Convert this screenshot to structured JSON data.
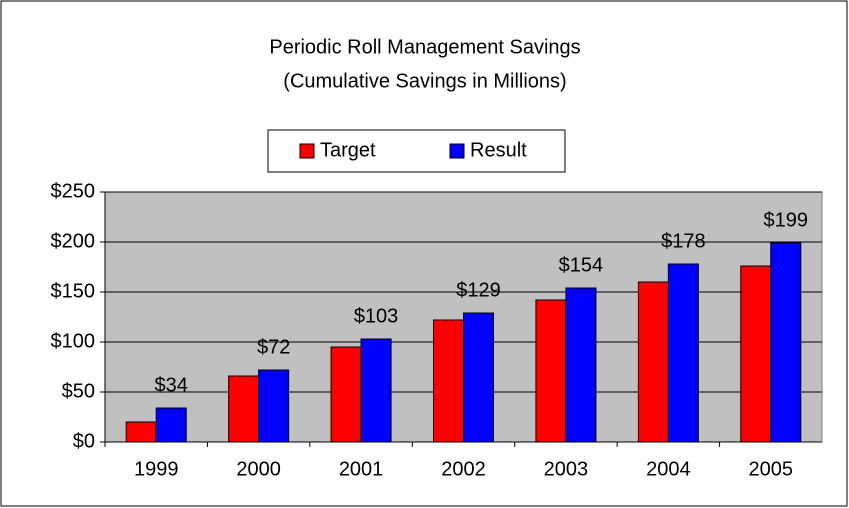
{
  "chart_data": {
    "type": "bar",
    "title": "Periodic Roll Management Savings",
    "subtitle": "(Cumulative Savings in Millions)",
    "categories": [
      "1999",
      "2000",
      "2001",
      "2002",
      "2003",
      "2004",
      "2005"
    ],
    "series": [
      {
        "name": "Target",
        "color": "#ff0000",
        "values": [
          20,
          66,
          95,
          122,
          142,
          160,
          176
        ]
      },
      {
        "name": "Result",
        "color": "#0000ff",
        "values": [
          34,
          72,
          103,
          129,
          154,
          178,
          199
        ],
        "value_labels": [
          "$34",
          "$72",
          "$103",
          "$129",
          "$154",
          "$178",
          "$199"
        ]
      }
    ],
    "ylim": [
      0,
      250
    ],
    "yticks": [
      {
        "value": 0,
        "label": "$0"
      },
      {
        "value": 50,
        "label": "$50"
      },
      {
        "value": 100,
        "label": "$100"
      },
      {
        "value": 150,
        "label": "$150"
      },
      {
        "value": 200,
        "label": "$200"
      },
      {
        "value": 250,
        "label": "$250"
      }
    ],
    "grid": true,
    "legend": "top"
  }
}
